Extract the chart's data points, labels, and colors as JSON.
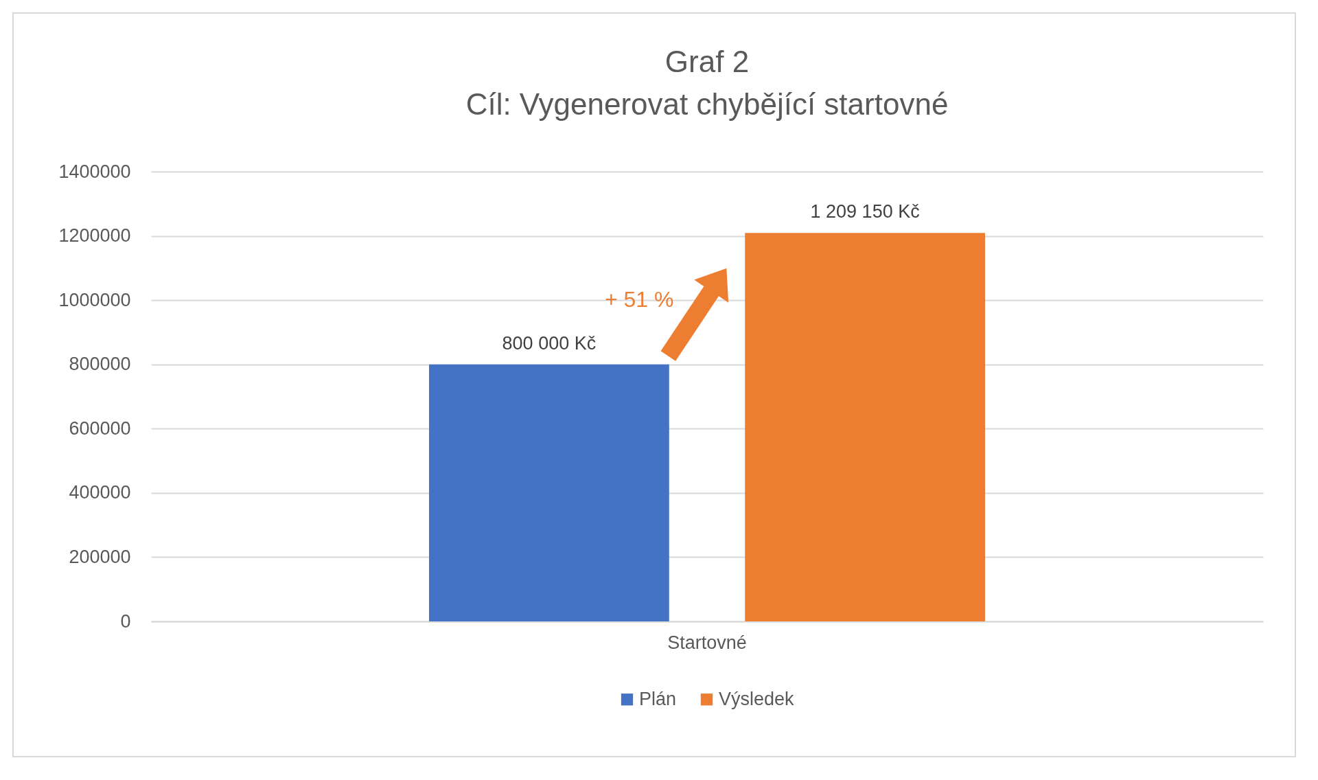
{
  "chart_data": {
    "type": "bar",
    "title": "Graf 2",
    "subtitle": "Cíl: Vygenerovat chybějící startovné",
    "categories": [
      "Startovné"
    ],
    "series": [
      {
        "name": "Plán",
        "color": "#4472c4",
        "values": [
          800000
        ],
        "value_labels": [
          "800 000 Kč"
        ]
      },
      {
        "name": "Výsledek",
        "color": "#ed7d31",
        "values": [
          1209150
        ],
        "value_labels": [
          "1 209 150 Kč"
        ]
      }
    ],
    "ylim": [
      0,
      1400000
    ],
    "yticks": [
      0,
      200000,
      400000,
      600000,
      800000,
      1000000,
      1200000,
      1400000
    ],
    "grid": "y",
    "legend": "bottom",
    "annotations": [
      "+ 51 %"
    ]
  }
}
